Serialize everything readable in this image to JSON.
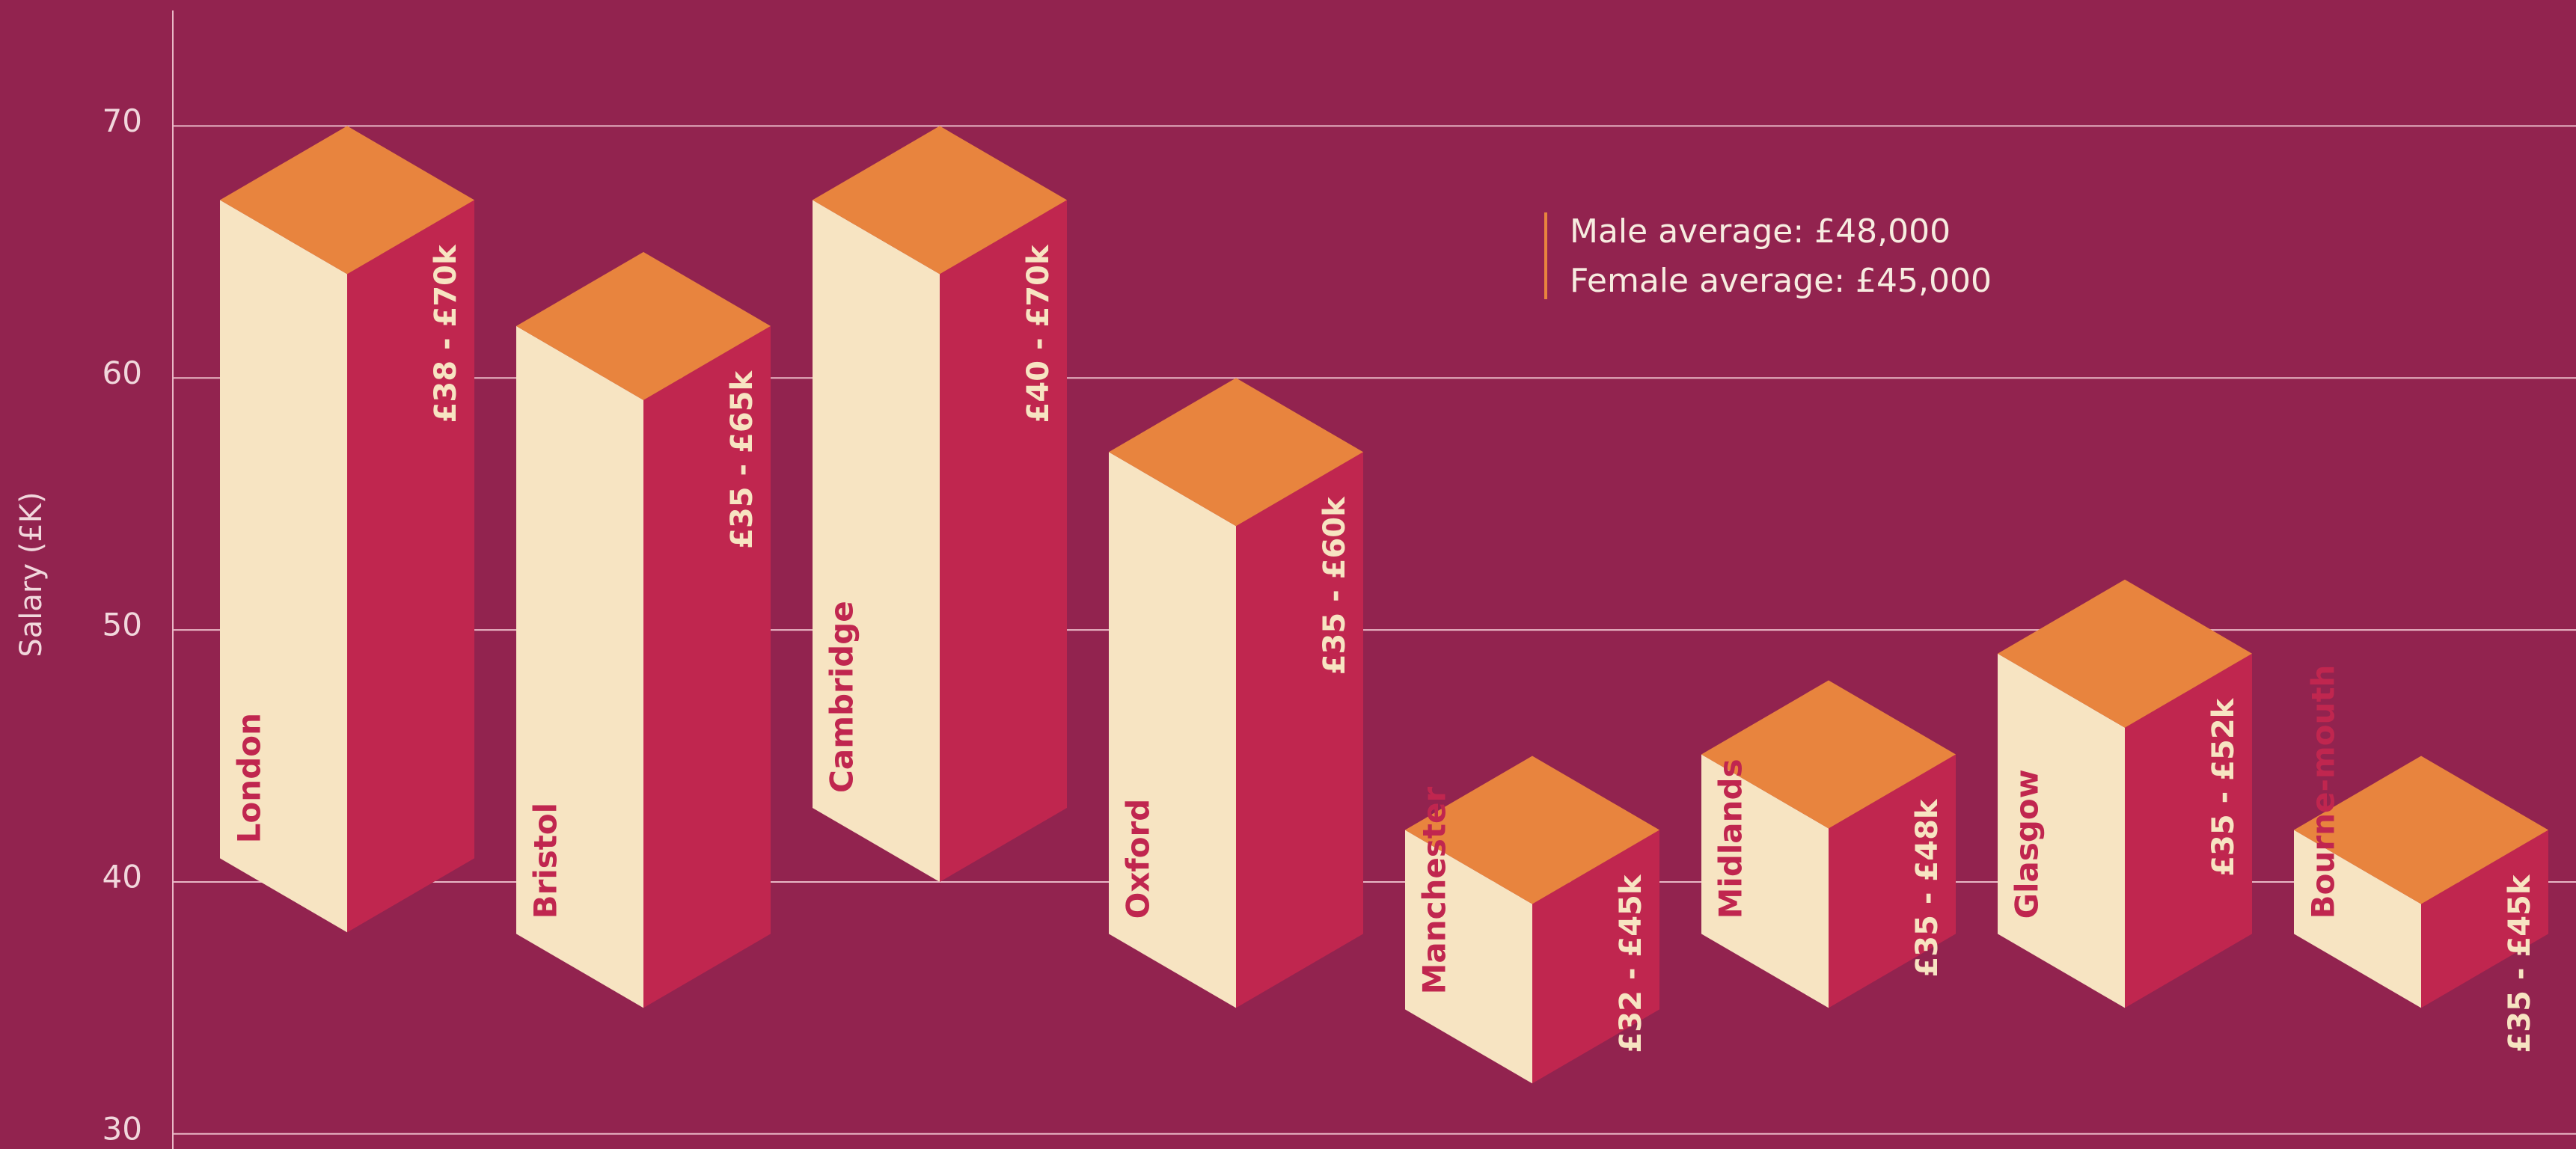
{
  "chart_data": {
    "type": "range_bar_3d",
    "y_axis_label": "Salary (£K)",
    "categories": [
      "London",
      "Bristol",
      "Cambridge",
      "Oxford",
      "Manchester",
      "Midlands",
      "Glasgow",
      "Bourne-mouth"
    ],
    "series": [
      {
        "name": "low",
        "values": [
          38,
          35,
          40,
          35,
          32,
          35,
          35,
          35
        ]
      },
      {
        "name": "high",
        "values": [
          70,
          65,
          70,
          60,
          45,
          48,
          52,
          45
        ]
      }
    ],
    "value_labels": [
      "£38 - £70k",
      "£35 - £65k",
      "£40 - £70k",
      "£35 - £60k",
      "£32 - £45k",
      "£35 - £48k",
      "£35 - £52k",
      "£35 - £45k"
    ],
    "colors": {
      "front_left": "#f7e4c2",
      "front_right": "#c0264f",
      "top": "#e8843e",
      "grid": "#e9b8c6"
    },
    "legend": [
      "Male average: £48,000",
      "Female average: £45,000"
    ],
    "ylim": [
      29.4,
      75
    ],
    "yticks": [
      30,
      40,
      50,
      60,
      70
    ],
    "grid": true
  }
}
